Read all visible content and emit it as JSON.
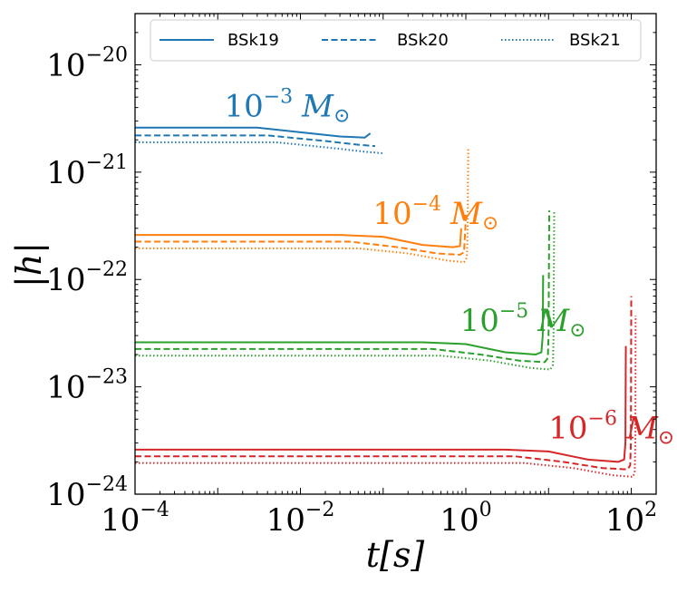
{
  "chart_data": {
    "type": "line",
    "xlabel": "t[s]",
    "ylabel": "|h|",
    "xscale": "log",
    "yscale": "log",
    "xlim": [
      0.0001,
      200
    ],
    "ylim": [
      1e-24,
      3e-20
    ],
    "x_ticks": [
      {
        "value": 0.0001,
        "base": "10",
        "exp": "−4"
      },
      {
        "value": 0.01,
        "base": "10",
        "exp": "−2"
      },
      {
        "value": 1,
        "base": "10",
        "exp": "0"
      },
      {
        "value": 100,
        "base": "10",
        "exp": "2"
      }
    ],
    "y_ticks": [
      {
        "value": 1e-24,
        "base": "10",
        "exp": "−24"
      },
      {
        "value": 1e-23,
        "base": "10",
        "exp": "−23"
      },
      {
        "value": 1e-22,
        "base": "10",
        "exp": "−22"
      },
      {
        "value": 1e-21,
        "base": "10",
        "exp": "−21"
      },
      {
        "value": 1e-20,
        "base": "10",
        "exp": "−20"
      }
    ],
    "grid": false,
    "legend": {
      "placement": "top",
      "entries": [
        {
          "label": "BSk19",
          "style": "solid"
        },
        {
          "label": "BSk20",
          "style": "dashed"
        },
        {
          "label": "BSk21",
          "style": "dotted"
        }
      ]
    },
    "groups": [
      {
        "mass_base": "10",
        "mass_exp": "−3",
        "mass_unit": "M",
        "color": "#1f77b4",
        "series": [
          {
            "name": "BSk19",
            "style": "solid",
            "points": [
              [
                0.0001,
                2.6e-21
              ],
              [
                0.003,
                2.6e-21
              ],
              [
                0.01,
                2.35e-21
              ],
              [
                0.03,
                2.15e-21
              ],
              [
                0.06,
                2.1e-21
              ],
              [
                0.07,
                2.3e-21
              ]
            ]
          },
          {
            "name": "BSk20",
            "style": "dashed",
            "points": [
              [
                0.0001,
                2.2e-21
              ],
              [
                0.004,
                2.2e-21
              ],
              [
                0.02,
                1.95e-21
              ],
              [
                0.05,
                1.8e-21
              ],
              [
                0.08,
                1.75e-21
              ]
            ]
          },
          {
            "name": "BSk21",
            "style": "dotted",
            "points": [
              [
                0.0001,
                1.9e-21
              ],
              [
                0.005,
                1.9e-21
              ],
              [
                0.03,
                1.65e-21
              ],
              [
                0.06,
                1.55e-21
              ],
              [
                0.1,
                1.5e-21
              ]
            ]
          }
        ]
      },
      {
        "mass_base": "10",
        "mass_exp": "−4",
        "mass_unit": "M",
        "color": "#ff7f0e",
        "series": [
          {
            "name": "BSk19",
            "style": "solid",
            "points": [
              [
                0.0001,
                2.6e-22
              ],
              [
                0.03,
                2.6e-22
              ],
              [
                0.1,
                2.5e-22
              ],
              [
                0.3,
                2.1e-22
              ],
              [
                0.7,
                2e-22
              ],
              [
                0.85,
                2.05e-22
              ],
              [
                0.88,
                3e-22
              ]
            ]
          },
          {
            "name": "BSk20",
            "style": "dashed",
            "points": [
              [
                0.0001,
                2.25e-22
              ],
              [
                0.04,
                2.25e-22
              ],
              [
                0.15,
                2e-22
              ],
              [
                0.45,
                1.75e-22
              ],
              [
                0.85,
                1.7e-22
              ],
              [
                0.95,
                1.8e-22
              ],
              [
                0.99,
                3.2e-22
              ],
              [
                1.0,
                4e-22
              ]
            ]
          },
          {
            "name": "BSk21",
            "style": "dotted",
            "points": [
              [
                0.0001,
                1.95e-22
              ],
              [
                0.05,
                1.95e-22
              ],
              [
                0.2,
                1.75e-22
              ],
              [
                0.6,
                1.5e-22
              ],
              [
                0.95,
                1.45e-22
              ],
              [
                1.03,
                1.6e-22
              ],
              [
                1.05,
                3e-22
              ],
              [
                1.07,
                1.7e-21
              ]
            ]
          }
        ]
      },
      {
        "mass_base": "10",
        "mass_exp": "−5",
        "mass_unit": "M",
        "color": "#2ca02c",
        "series": [
          {
            "name": "BSk19",
            "style": "solid",
            "points": [
              [
                0.0001,
                2.6e-23
              ],
              [
                0.3,
                2.6e-23
              ],
              [
                1.0,
                2.5e-23
              ],
              [
                3.0,
                2.1e-23
              ],
              [
                7.0,
                2e-23
              ],
              [
                8.2,
                2.1e-23
              ],
              [
                8.5,
                3e-23
              ],
              [
                8.6,
                1.1e-22
              ]
            ]
          },
          {
            "name": "BSk20",
            "style": "dashed",
            "points": [
              [
                0.0001,
                2.25e-23
              ],
              [
                0.4,
                2.25e-23
              ],
              [
                1.5,
                2e-23
              ],
              [
                4.5,
                1.75e-23
              ],
              [
                9.0,
                1.7e-23
              ],
              [
                9.8,
                1.85e-23
              ],
              [
                10.0,
                3e-23
              ],
              [
                10.2,
                4.4e-22
              ]
            ]
          },
          {
            "name": "BSk21",
            "style": "dotted",
            "points": [
              [
                0.0001,
                1.95e-23
              ],
              [
                0.5,
                1.95e-23
              ],
              [
                2.0,
                1.75e-23
              ],
              [
                6.0,
                1.5e-23
              ],
              [
                10.5,
                1.45e-23
              ],
              [
                11.3,
                1.6e-23
              ],
              [
                11.5,
                3e-23
              ],
              [
                11.7,
                4.4e-22
              ]
            ]
          }
        ]
      },
      {
        "mass_base": "10",
        "mass_exp": "−6",
        "mass_unit": "M",
        "color": "#d62728",
        "series": [
          {
            "name": "BSk19",
            "style": "solid",
            "points": [
              [
                0.0001,
                2.6e-24
              ],
              [
                3.0,
                2.6e-24
              ],
              [
                10.0,
                2.5e-24
              ],
              [
                30.0,
                2.1e-24
              ],
              [
                70.0,
                2e-24
              ],
              [
                82.0,
                2.1e-24
              ],
              [
                85.0,
                3e-24
              ],
              [
                86.0,
                2.4e-23
              ]
            ]
          },
          {
            "name": "BSk20",
            "style": "dashed",
            "points": [
              [
                0.0001,
                2.25e-24
              ],
              [
                4.0,
                2.25e-24
              ],
              [
                15.0,
                2e-24
              ],
              [
                45.0,
                1.75e-24
              ],
              [
                90.0,
                1.7e-24
              ],
              [
                97.0,
                1.85e-24
              ],
              [
                99.0,
                3e-24
              ],
              [
                100.0,
                7e-23
              ]
            ]
          },
          {
            "name": "BSk21",
            "style": "dotted",
            "points": [
              [
                0.0001,
                1.95e-24
              ],
              [
                5.0,
                1.95e-24
              ],
              [
                20.0,
                1.75e-24
              ],
              [
                60.0,
                1.5e-24
              ],
              [
                105.0,
                1.45e-24
              ],
              [
                110.0,
                1.6e-24
              ],
              [
                112.0,
                3e-24
              ],
              [
                113.0,
                4.6e-23
              ]
            ]
          }
        ]
      }
    ],
    "mass_labels": [
      {
        "group": 0,
        "x": 0.0012,
        "y": 3.3e-21
      },
      {
        "group": 1,
        "x": 0.075,
        "y": 3.3e-22
      },
      {
        "group": 2,
        "x": 0.85,
        "y": 3.3e-23
      },
      {
        "group": 3,
        "x": 10.0,
        "y": 3.3e-24
      }
    ]
  }
}
